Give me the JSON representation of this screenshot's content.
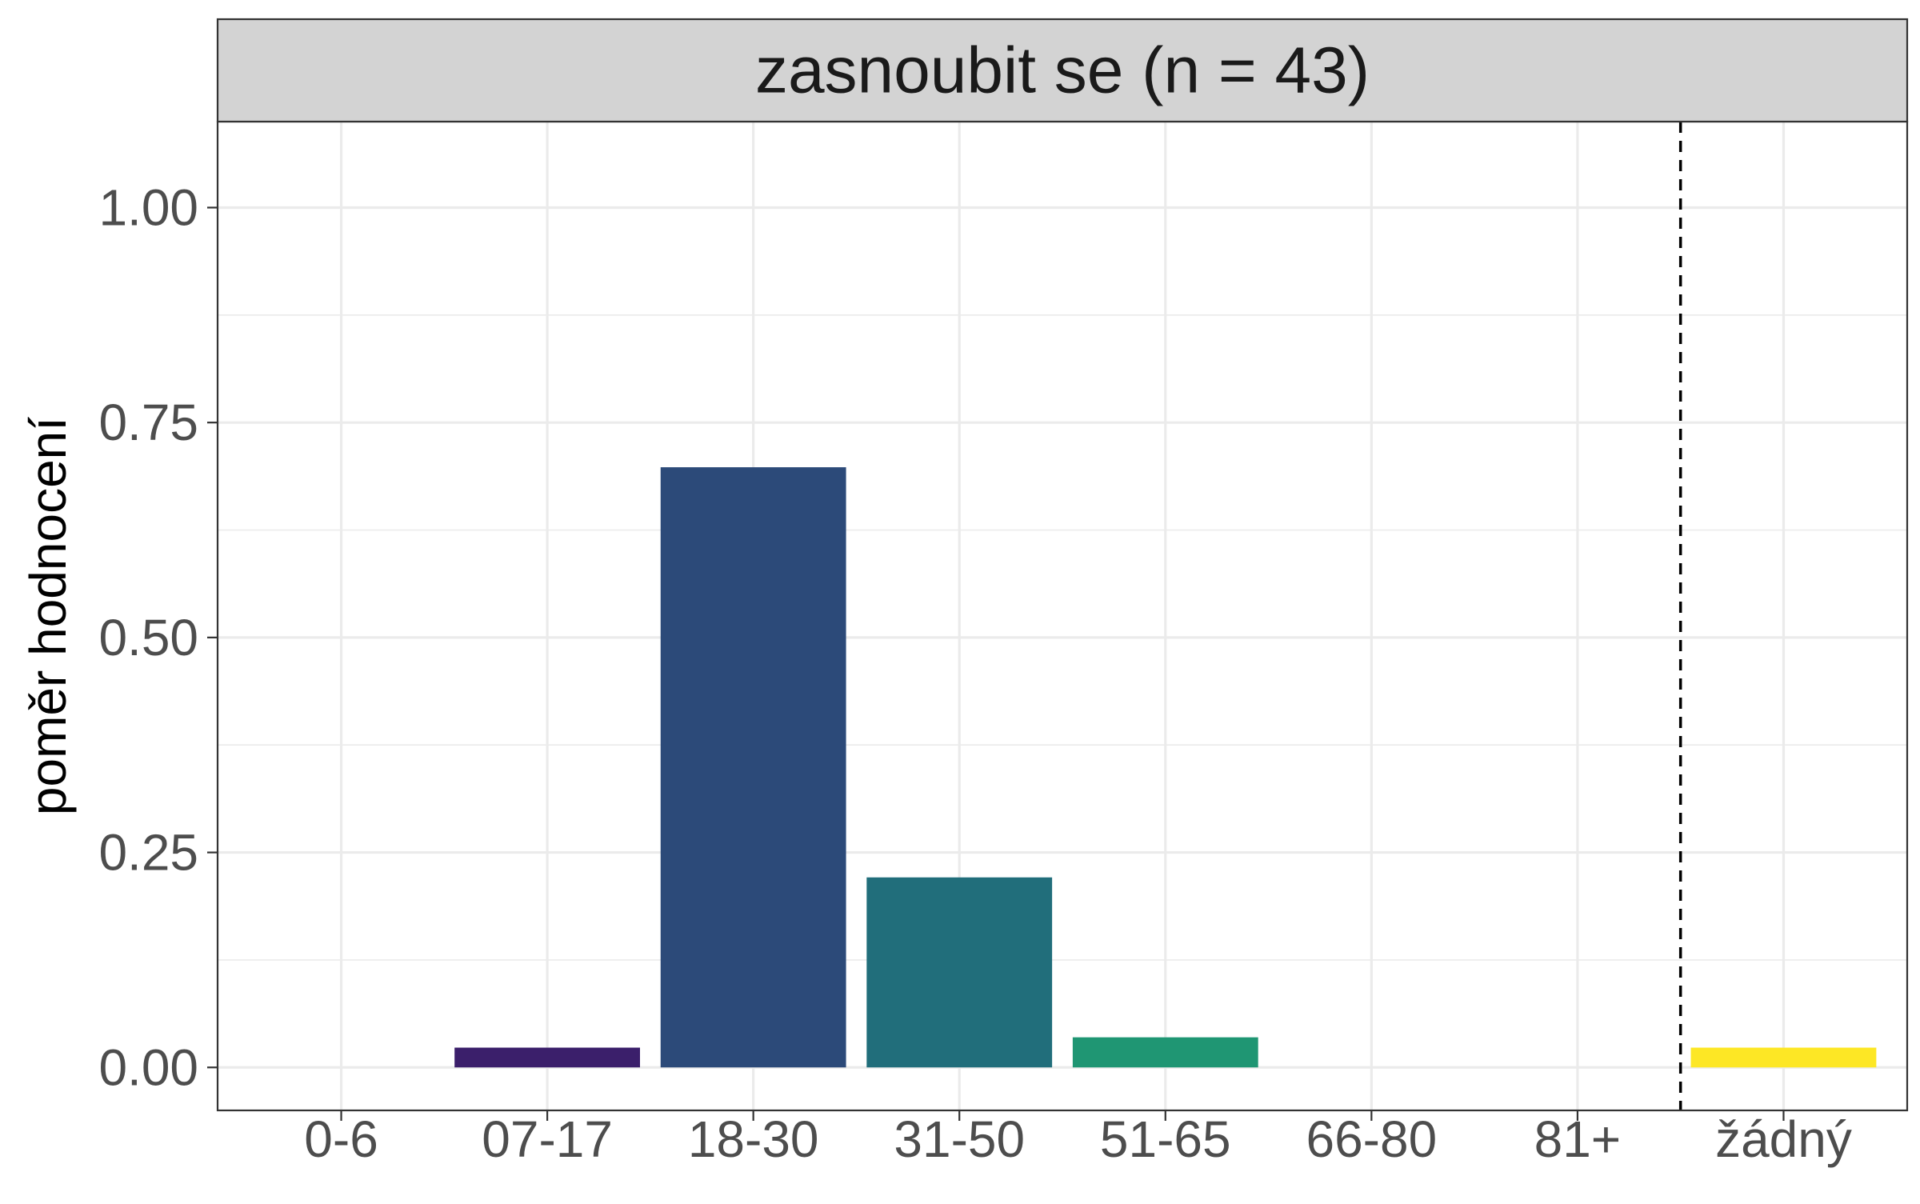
{
  "chart_data": {
    "type": "bar",
    "facet_title": "zasnoubit se (n = 43)",
    "xlabel": "",
    "ylabel": "poměr hodnocení",
    "categories": [
      "0-6",
      "07-17",
      "18-30",
      "31-50",
      "51-65",
      "66-80",
      "81+",
      "žádný"
    ],
    "values": [
      0.0,
      0.023,
      0.698,
      0.221,
      0.035,
      0.0,
      0.0,
      0.023
    ],
    "colors": [
      "#440154",
      "#3b1f6b",
      "#2c4a79",
      "#216e7b",
      "#1f9673",
      "#5cc55f",
      "#a8d94a",
      "#fde725"
    ],
    "ylim": [
      -0.05,
      1.1
    ],
    "yticks": [
      0.0,
      0.25,
      0.5,
      0.75,
      1.0
    ],
    "ytick_labels": [
      "0.00",
      "0.25",
      "0.50",
      "0.75",
      "1.00"
    ],
    "grid": true,
    "reference_line": {
      "style": "dashed",
      "between": [
        "81+",
        "žádný"
      ]
    },
    "strip_color": "#d3d3d3",
    "grid_color": "#ebebeb"
  }
}
